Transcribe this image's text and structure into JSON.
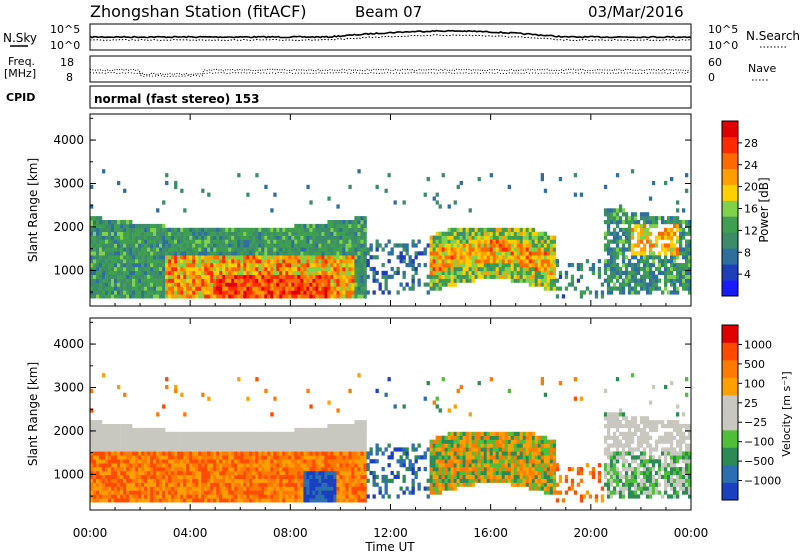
{
  "header": {
    "title": "Zhongshan Station (fitACF)",
    "beam": "Beam 07",
    "date": "03/Mar/2016"
  },
  "top_panel": {
    "nsky_label": "N.Sky",
    "nsearch_label": "N.Search",
    "left_ticks": [
      "10^5",
      "10^0"
    ],
    "right_ticks": [
      "10^5",
      "10^0"
    ],
    "freq_label_1": "Freq.",
    "freq_label_2": "[MHz]",
    "freq_ticks": [
      "18",
      "8"
    ],
    "nave_label": "Nave",
    "nave_ticks": [
      "60",
      "0"
    ],
    "cpid_label": "CPID",
    "cpid_text": "normal (fast stereo) 153"
  },
  "colors": {
    "power_scale": [
      "#1a1aff",
      "#1f3fb8",
      "#2e6fa0",
      "#3c8c6a",
      "#3f9f50",
      "#7fd24a",
      "#ffd000",
      "#ffa000",
      "#ff6a00",
      "#ff2a00",
      "#e00000"
    ],
    "velocity_scale": [
      "#1a40c0",
      "#2c6fb0",
      "#2e8a55",
      "#4fbf3a",
      "#c8c8c0",
      "#c8c8c0",
      "#ffa000",
      "#ff7a00",
      "#ff4a00",
      "#e00000"
    ]
  },
  "chart_data": [
    {
      "type": "heatmap",
      "quantity": "Power",
      "ylabel": "Slant Range [km]",
      "yticks": [
        "1000",
        "2000",
        "3000",
        "4000"
      ],
      "ylim": [
        180,
        4600
      ],
      "colorbar_label": "Power [dB]",
      "colorbar_ticks": [
        "4",
        "8",
        "12",
        "16",
        "20",
        "24",
        "28"
      ],
      "colorbar_range": [
        0,
        32
      ]
    },
    {
      "type": "heatmap",
      "quantity": "Velocity",
      "ylabel": "Slant Range [km]",
      "yticks": [
        "1000",
        "2000",
        "3000",
        "4000"
      ],
      "ylim": [
        180,
        4600
      ],
      "colorbar_label": "Velocity [m s⁻¹]",
      "colorbar_ticks": [
        "1000",
        "500",
        "100",
        "25",
        "−25",
        "−100",
        "−500",
        "−1000"
      ]
    }
  ],
  "xaxis": {
    "label": "Time UT",
    "ticks": [
      "00:00",
      "04:00",
      "08:00",
      "12:00",
      "16:00",
      "20:00",
      "00:00"
    ],
    "xlim_hours": [
      0,
      24
    ]
  }
}
